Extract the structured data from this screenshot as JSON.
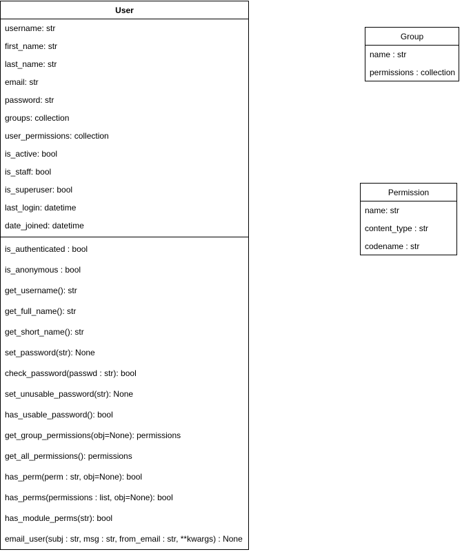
{
  "user_class": {
    "title": "User",
    "attributes": [
      "username: str",
      "first_name: str",
      "last_name: str",
      "email: str",
      "password: str",
      "groups: collection",
      "user_permissions: collection",
      "is_active: bool",
      "is_staff: bool",
      "is_superuser: bool",
      "last_login: datetime",
      "date_joined: datetime"
    ],
    "methods": [
      "is_authenticated : bool",
      "is_anonymous : bool",
      "get_username(): str",
      "get_full_name(): str",
      "get_short_name(): str",
      "set_password(str): None",
      "check_password(passwd : str): bool",
      "set_unusable_password(str): None",
      "has_usable_password(): bool",
      "get_group_permissions(obj=None): permissions",
      "get_all_permissions(): permissions",
      "has_perm(perm : str, obj=None): bool",
      "has_perms(permissions : list, obj=None): bool",
      "has_module_perms(str): bool",
      "email_user(subj : str, msg : str, from_email : str, **kwargs) : None"
    ]
  },
  "group_class": {
    "title": "Group",
    "attributes": [
      "name : str",
      "permissions : collection"
    ]
  },
  "permission_class": {
    "title": "Permission",
    "attributes": [
      "name: str",
      "content_type : str",
      "codename : str"
    ]
  }
}
